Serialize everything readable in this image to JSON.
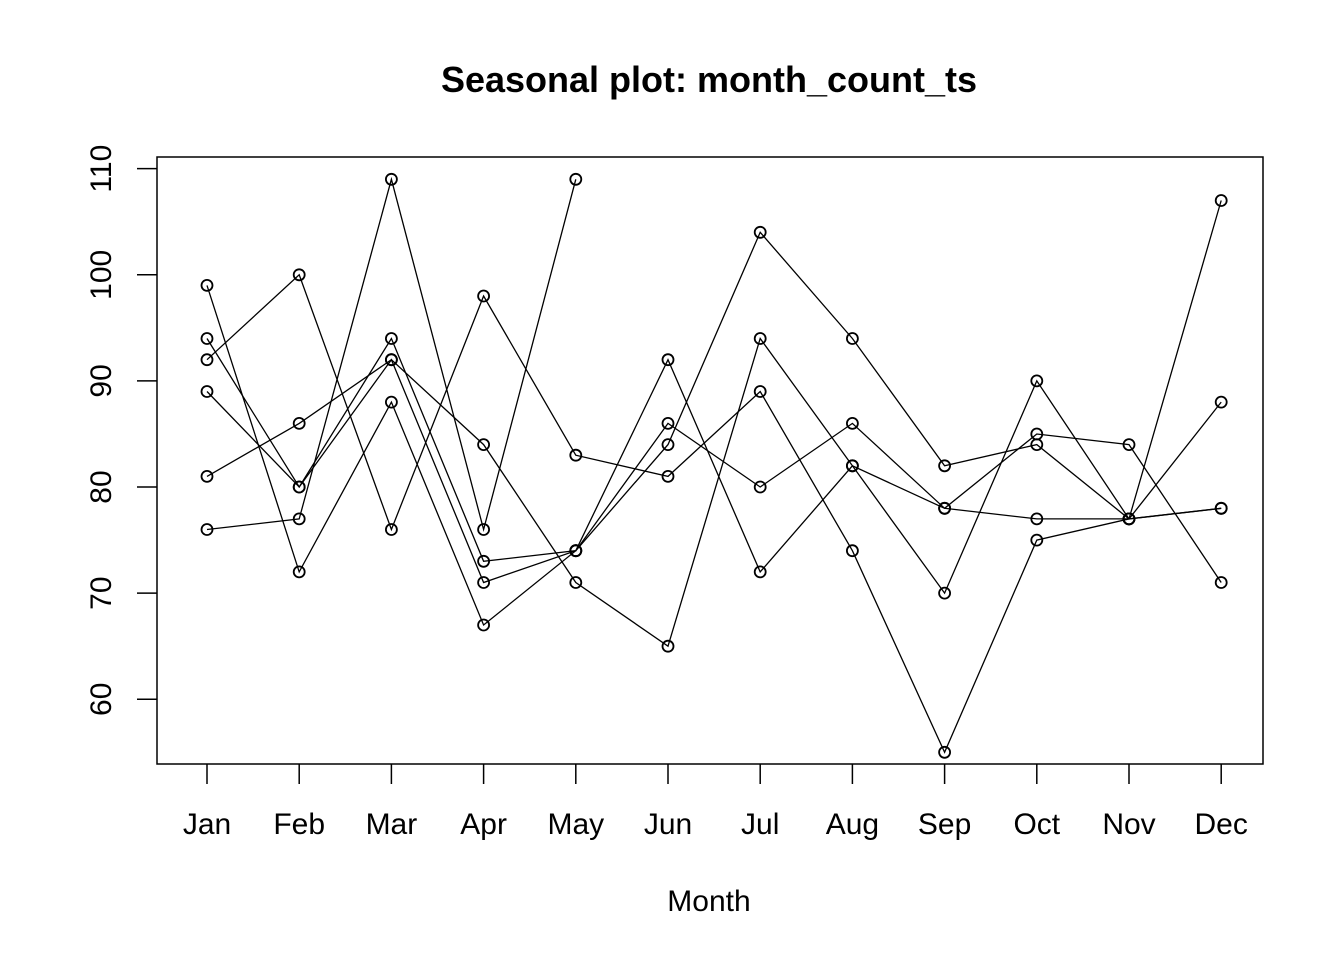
{
  "chart_data": {
    "type": "line",
    "title": "Seasonal plot: month_count_ts",
    "xlabel": "Month",
    "ylabel": "",
    "categories": [
      "Jan",
      "Feb",
      "Mar",
      "Apr",
      "May",
      "Jun",
      "Jul",
      "Aug",
      "Sep",
      "Oct",
      "Nov",
      "Dec"
    ],
    "yticks": [
      60,
      70,
      80,
      90,
      100,
      110
    ],
    "ylim": [
      53.9,
      111.1
    ],
    "grid": false,
    "legend": "none",
    "marker": "open-circle",
    "series": [
      {
        "values": [
          99,
          72,
          88,
          67,
          74,
          84,
          104,
          94,
          82,
          84,
          77,
          88
        ]
      },
      {
        "values": [
          94,
          80,
          92,
          71,
          74,
          86,
          80,
          86,
          78,
          77,
          77,
          78
        ]
      },
      {
        "values": [
          92,
          100,
          76,
          98,
          83,
          81,
          89,
          74,
          55,
          75,
          77,
          107
        ]
      },
      {
        "values": [
          89,
          80,
          94,
          73,
          74,
          92,
          72,
          82,
          78,
          85,
          84,
          71
        ]
      },
      {
        "values": [
          81,
          86,
          92,
          84,
          71,
          65,
          94,
          82,
          70,
          90,
          77,
          78
        ]
      },
      {
        "values": [
          76,
          77,
          109,
          76,
          109,
          null,
          null,
          null,
          null,
          null,
          null,
          null
        ]
      }
    ],
    "colors": {
      "line": "#000000",
      "background": "#ffffff"
    }
  }
}
